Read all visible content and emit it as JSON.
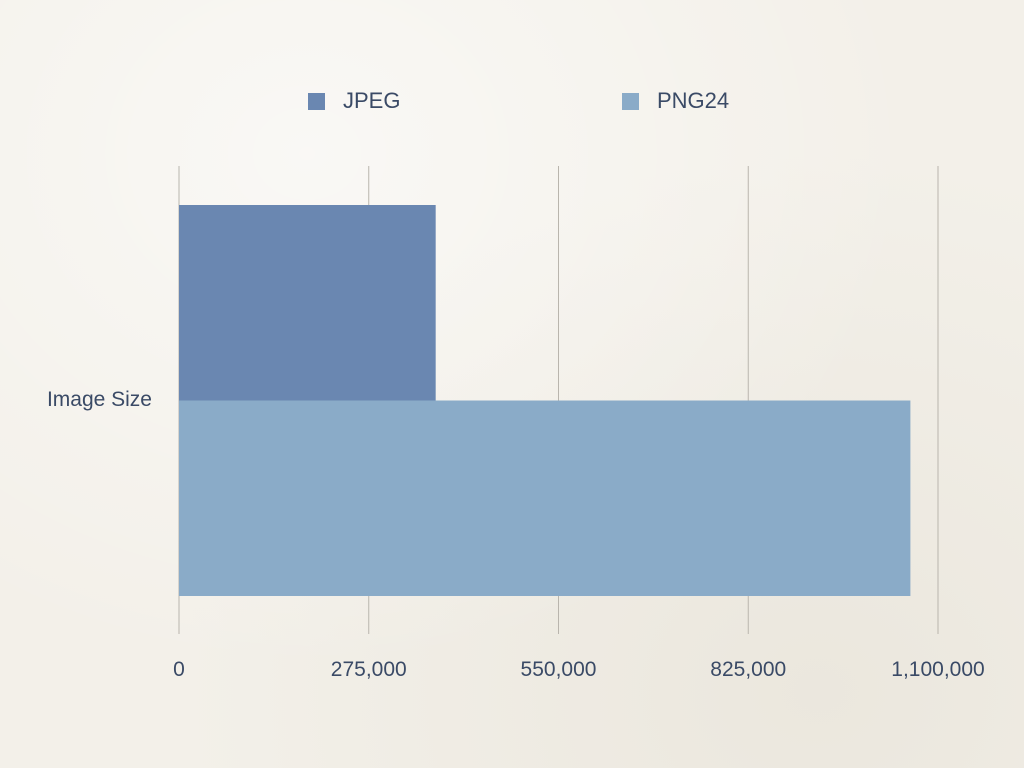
{
  "chart_data": {
    "type": "bar",
    "orientation": "horizontal",
    "categories": [
      "Image Size"
    ],
    "series": [
      {
        "name": "JPEG",
        "values": [
          372000
        ],
        "color": "#6a87b1"
      },
      {
        "name": "PNG24",
        "values": [
          1060000
        ],
        "color": "#8aabc8"
      }
    ],
    "xlim": [
      0,
      1100000
    ],
    "x_ticks": [
      0,
      275000,
      550000,
      825000,
      1100000
    ],
    "x_tick_labels": [
      "0",
      "275,000",
      "550,000",
      "825,000",
      "1,100,000"
    ],
    "grid": "vertical",
    "legend_position": "top",
    "title": "",
    "xlabel": "",
    "ylabel": ""
  }
}
